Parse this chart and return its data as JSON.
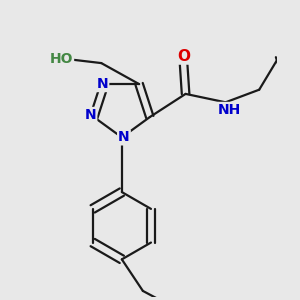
{
  "bg_color": "#e8e8e8",
  "bond_color": "#1a1a1a",
  "bond_width": 1.6,
  "atom_colors": {
    "O": "#dd0000",
    "N": "#0000cc",
    "S": "#aaaa00",
    "C": "#1a1a1a",
    "HO": "#448844"
  },
  "font_size": 10,
  "fig_size": [
    3.0,
    3.0
  ],
  "dpi": 100,
  "xlim": [
    0.0,
    6.5
  ],
  "ylim": [
    -3.5,
    3.5
  ]
}
